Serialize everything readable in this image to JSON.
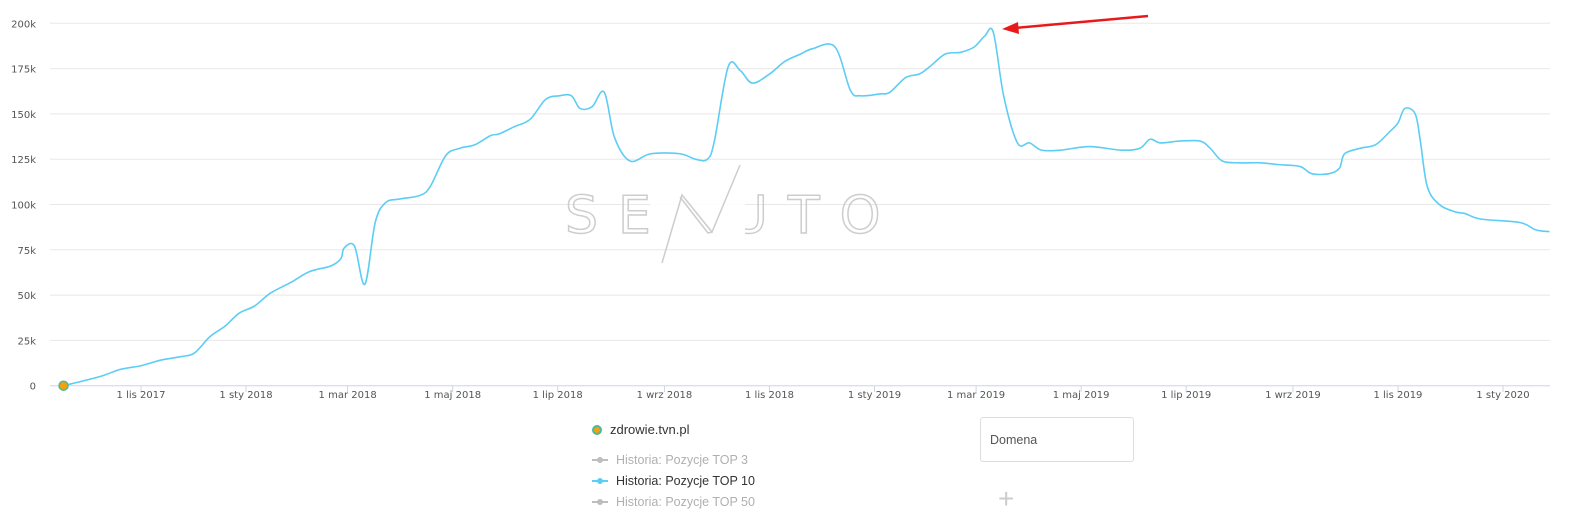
{
  "chart_data": {
    "type": "line",
    "title": "",
    "xlabel": "",
    "ylabel": "",
    "ylim": [
      0,
      200000
    ],
    "grid": true,
    "y_ticks": [
      "0",
      "25k",
      "50k",
      "75k",
      "100k",
      "125k",
      "150k",
      "175k",
      "200k"
    ],
    "x_ticks": [
      {
        "date": "2017-11-01",
        "label": "1 lis 2017"
      },
      {
        "date": "2018-01-01",
        "label": "1 sty 2018"
      },
      {
        "date": "2018-03-01",
        "label": "1 mar 2018"
      },
      {
        "date": "2018-05-01",
        "label": "1 maj 2018"
      },
      {
        "date": "2018-07-01",
        "label": "1 lip 2018"
      },
      {
        "date": "2018-09-01",
        "label": "1 wrz 2018"
      },
      {
        "date": "2018-11-01",
        "label": "1 lis 2018"
      },
      {
        "date": "2019-01-01",
        "label": "1 sty 2019"
      },
      {
        "date": "2019-03-01",
        "label": "1 mar 2019"
      },
      {
        "date": "2019-05-01",
        "label": "1 maj 2019"
      },
      {
        "date": "2019-07-01",
        "label": "1 lip 2019"
      },
      {
        "date": "2019-09-01",
        "label": "1 wrz 2019"
      },
      {
        "date": "2019-11-01",
        "label": "1 lis 2019"
      },
      {
        "date": "2020-01-01",
        "label": "1 sty 2020"
      }
    ],
    "series": [
      {
        "name": "Historia: Pozycje TOP 10",
        "color": "#5ccdf5",
        "points": [
          [
            "2017-09-17",
            0
          ],
          [
            "2017-10-08",
            5000
          ],
          [
            "2017-10-20",
            9000
          ],
          [
            "2017-11-01",
            11000
          ],
          [
            "2017-11-12",
            14000
          ],
          [
            "2017-11-24",
            16000
          ],
          [
            "2017-12-02",
            18000
          ],
          [
            "2017-12-11",
            27000
          ],
          [
            "2017-12-20",
            33000
          ],
          [
            "2017-12-28",
            40000
          ],
          [
            "2018-01-06",
            44000
          ],
          [
            "2018-01-15",
            51000
          ],
          [
            "2018-01-27",
            57000
          ],
          [
            "2018-02-07",
            63000
          ],
          [
            "2018-02-19",
            66000
          ],
          [
            "2018-02-25",
            70000
          ],
          [
            "2018-02-27",
            76000
          ],
          [
            "2018-03-05",
            77000
          ],
          [
            "2018-03-11",
            56000
          ],
          [
            "2018-03-17",
            90000
          ],
          [
            "2018-03-23",
            101000
          ],
          [
            "2018-03-31",
            103000
          ],
          [
            "2018-04-12",
            105000
          ],
          [
            "2018-04-18",
            110000
          ],
          [
            "2018-04-27",
            127000
          ],
          [
            "2018-05-05",
            131000
          ],
          [
            "2018-05-14",
            133000
          ],
          [
            "2018-05-23",
            138000
          ],
          [
            "2018-05-28",
            139000
          ],
          [
            "2018-06-06",
            143000
          ],
          [
            "2018-06-15",
            147000
          ],
          [
            "2018-06-24",
            158000
          ],
          [
            "2018-07-02",
            160000
          ],
          [
            "2018-07-09",
            160000
          ],
          [
            "2018-07-14",
            153000
          ],
          [
            "2018-07-21",
            154000
          ],
          [
            "2018-07-28",
            162000
          ],
          [
            "2018-08-03",
            137000
          ],
          [
            "2018-08-12",
            124000
          ],
          [
            "2018-08-24",
            128000
          ],
          [
            "2018-09-10",
            128000
          ],
          [
            "2018-09-19",
            125000
          ],
          [
            "2018-09-26",
            125000
          ],
          [
            "2018-09-30",
            135000
          ],
          [
            "2018-10-08",
            176000
          ],
          [
            "2018-10-15",
            174000
          ],
          [
            "2018-10-22",
            167000
          ],
          [
            "2018-11-01",
            172000
          ],
          [
            "2018-11-10",
            179000
          ],
          [
            "2018-11-19",
            183000
          ],
          [
            "2018-11-26",
            186000
          ],
          [
            "2018-12-09",
            187000
          ],
          [
            "2018-12-18",
            163000
          ],
          [
            "2018-12-24",
            160000
          ],
          [
            "2019-01-04",
            161000
          ],
          [
            "2019-01-10",
            162000
          ],
          [
            "2019-01-19",
            170000
          ],
          [
            "2019-01-27",
            172000
          ],
          [
            "2019-02-02",
            176000
          ],
          [
            "2019-02-11",
            183000
          ],
          [
            "2019-02-20",
            184000
          ],
          [
            "2019-02-28",
            187000
          ],
          [
            "2019-03-06",
            193000
          ],
          [
            "2019-03-11",
            195000
          ],
          [
            "2019-03-17",
            160000
          ],
          [
            "2019-03-25",
            134000
          ],
          [
            "2019-04-01",
            134000
          ],
          [
            "2019-04-08",
            130000
          ],
          [
            "2019-04-19",
            130000
          ],
          [
            "2019-05-06",
            132000
          ],
          [
            "2019-05-24",
            130000
          ],
          [
            "2019-06-04",
            131000
          ],
          [
            "2019-06-10",
            136000
          ],
          [
            "2019-06-16",
            134000
          ],
          [
            "2019-06-27",
            135000
          ],
          [
            "2019-07-09",
            135000
          ],
          [
            "2019-07-15",
            131000
          ],
          [
            "2019-07-22",
            124000
          ],
          [
            "2019-08-01",
            123000
          ],
          [
            "2019-08-13",
            123000
          ],
          [
            "2019-08-24",
            122000
          ],
          [
            "2019-09-05",
            121000
          ],
          [
            "2019-09-12",
            117000
          ],
          [
            "2019-09-22",
            117000
          ],
          [
            "2019-09-28",
            120000
          ],
          [
            "2019-10-01",
            128000
          ],
          [
            "2019-10-10",
            131000
          ],
          [
            "2019-10-19",
            133000
          ],
          [
            "2019-10-27",
            140000
          ],
          [
            "2019-11-01",
            145000
          ],
          [
            "2019-11-05",
            153000
          ],
          [
            "2019-11-11",
            150000
          ],
          [
            "2019-11-14",
            135000
          ],
          [
            "2019-11-18",
            110000
          ],
          [
            "2019-11-25",
            100000
          ],
          [
            "2019-12-04",
            96000
          ],
          [
            "2019-12-10",
            95000
          ],
          [
            "2019-12-19",
            92000
          ],
          [
            "2020-01-11",
            90000
          ],
          [
            "2020-01-20",
            86000
          ],
          [
            "2020-01-28",
            85000
          ]
        ]
      }
    ],
    "annotations": [
      {
        "type": "arrow",
        "color": "#e8191b",
        "target_date": "2019-03-11",
        "target_value": 195000
      }
    ]
  },
  "watermark": "SENUTO",
  "legend": {
    "domain": {
      "label": "zdrowie.tvn.pl",
      "color": "#f0a30a"
    },
    "items": [
      {
        "label": "Historia: Pozycje TOP 3",
        "active": false
      },
      {
        "label": "Historia: Pozycje TOP 10",
        "active": true
      },
      {
        "label": "Historia: Pozycje TOP 50",
        "active": false
      }
    ]
  },
  "domain_input": {
    "placeholder": "Domena"
  },
  "add_button": {
    "icon": "plus-icon"
  }
}
